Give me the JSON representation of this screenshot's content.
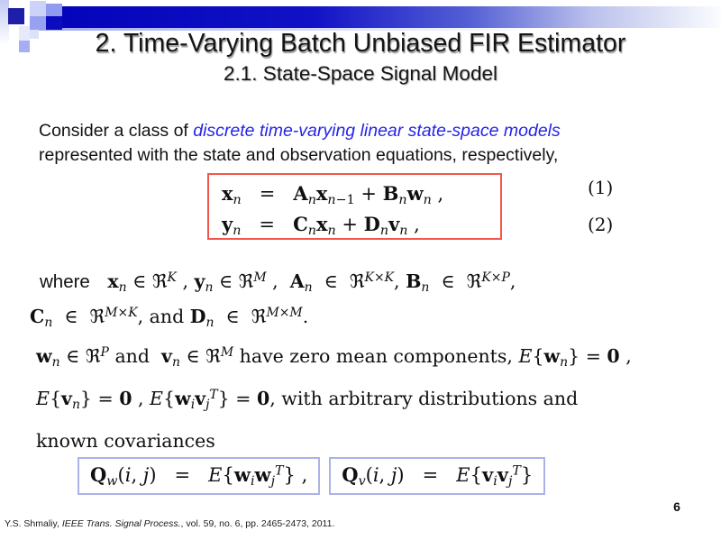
{
  "theme": {
    "accent-red": "#f2564b",
    "box-blue": "#a9b3e8",
    "highlight-blue": "#2525e8",
    "bar-navy": "#0404ba"
  },
  "slide": {
    "title": "2. Time-Varying Batch Unbiased FIR Estimator",
    "subtitle": "2.1. State-Space Signal Model",
    "page_number": "6"
  },
  "intro": {
    "before": "Consider a class of ",
    "highlight": "discrete time-varying linear state-space models",
    "after": "represented with the state and observation equations, respectively,"
  },
  "equations": {
    "state": {
      "math": "<b>x</b><sub><i>n</i></sub>&nbsp;&nbsp;&nbsp;=&nbsp;&nbsp;&nbsp;<b>A</b><sub><i>n</i></sub><b>x</b><sub><i>n</i>−1</sub> + <b>B</b><sub><i>n</i></sub><b>w</b><sub><i>n</i></sub>&nbsp;,",
      "number": "(1)"
    },
    "observation": {
      "math": "<b>y</b><sub><i>n</i></sub>&nbsp;&nbsp;&nbsp;=&nbsp;&nbsp;&nbsp;<b>C</b><sub><i>n</i></sub><b>x</b><sub><i>n</i></sub> + <b>D</b><sub><i>n</i></sub><b>v</b><sub><i>n</i></sub>&nbsp;,",
      "number": "(2)"
    }
  },
  "where_block": {
    "line1": "<span class='sf'>where</span>&nbsp;&nbsp; <b>x</b><sub><i>n</i></sub> ∈ ℜ<sup><i>K</i></sup>&nbsp;, <b>y</b><sub><i>n</i></sub> ∈ ℜ<sup><i>M</i></sup>&nbsp;,&nbsp; <b>A</b><sub><i>n</i></sub>&nbsp; ∈&nbsp; ℜ<sup><i>K</i>×<i>K</i></sup>, <b>B</b><sub><i>n</i></sub>&nbsp; ∈&nbsp; ℜ<sup><i>K</i>×<i>P</i></sup>,",
    "line2": "<b>C</b><sub><i>n</i></sub>&nbsp; ∈&nbsp; ℜ<sup><i>M</i>×<i>K</i></sup>, and <b>D</b><sub><i>n</i></sub>&nbsp; ∈&nbsp; ℜ<sup><i>M</i>×<i>M</i></sup>."
  },
  "noise_block": {
    "line1": "<b>w</b><sub><i>n</i></sub> ∈ ℜ<sup><i>P</i></sup> and&nbsp; <b>v</b><sub><i>n</i></sub> ∈ ℜ<sup><i>M</i></sup> have zero mean components, <i>E</i>{<b>w</b><sub><i>n</i></sub>} = <b>0</b>&nbsp;,",
    "line2": "<i>E</i>{<b>v</b><sub><i>n</i></sub>} = <b>0</b>&nbsp;, <i>E</i>{<b>w</b><sub><i>i</i></sub><b>v</b><sub><i>j</i></sub><sup><i>T</i></sup>} = <b>0</b>, with arbitrary distributions and",
    "line3": "known covariances"
  },
  "covariances": {
    "q_w": "<b>Q</b><sub><i>w</i></sub>(<i>i</i>, <i>j</i>)&nbsp;&nbsp;&nbsp;=&nbsp;&nbsp;&nbsp;<i>E</i>{<b>w</b><sub><i>i</i></sub><b>w</b><sub><i>j</i></sub><sup><i>T</i></sup>}&nbsp;,",
    "q_v": "<b>Q</b><sub><i>v</i></sub>(<i>i</i>, <i>j</i>)&nbsp;&nbsp;&nbsp;=&nbsp;&nbsp;&nbsp;<i>E</i>{<b>v</b><sub><i>i</i></sub><b>v</b><sub><i>j</i></sub><sup><i>T</i></sup>}"
  },
  "footer": {
    "author": "Y.S. Shmaliy, ",
    "journal": "IEEE Trans. Signal Process.",
    "rest": ", vol. 59, no. 6,  pp. 2465-2473, 2011."
  }
}
